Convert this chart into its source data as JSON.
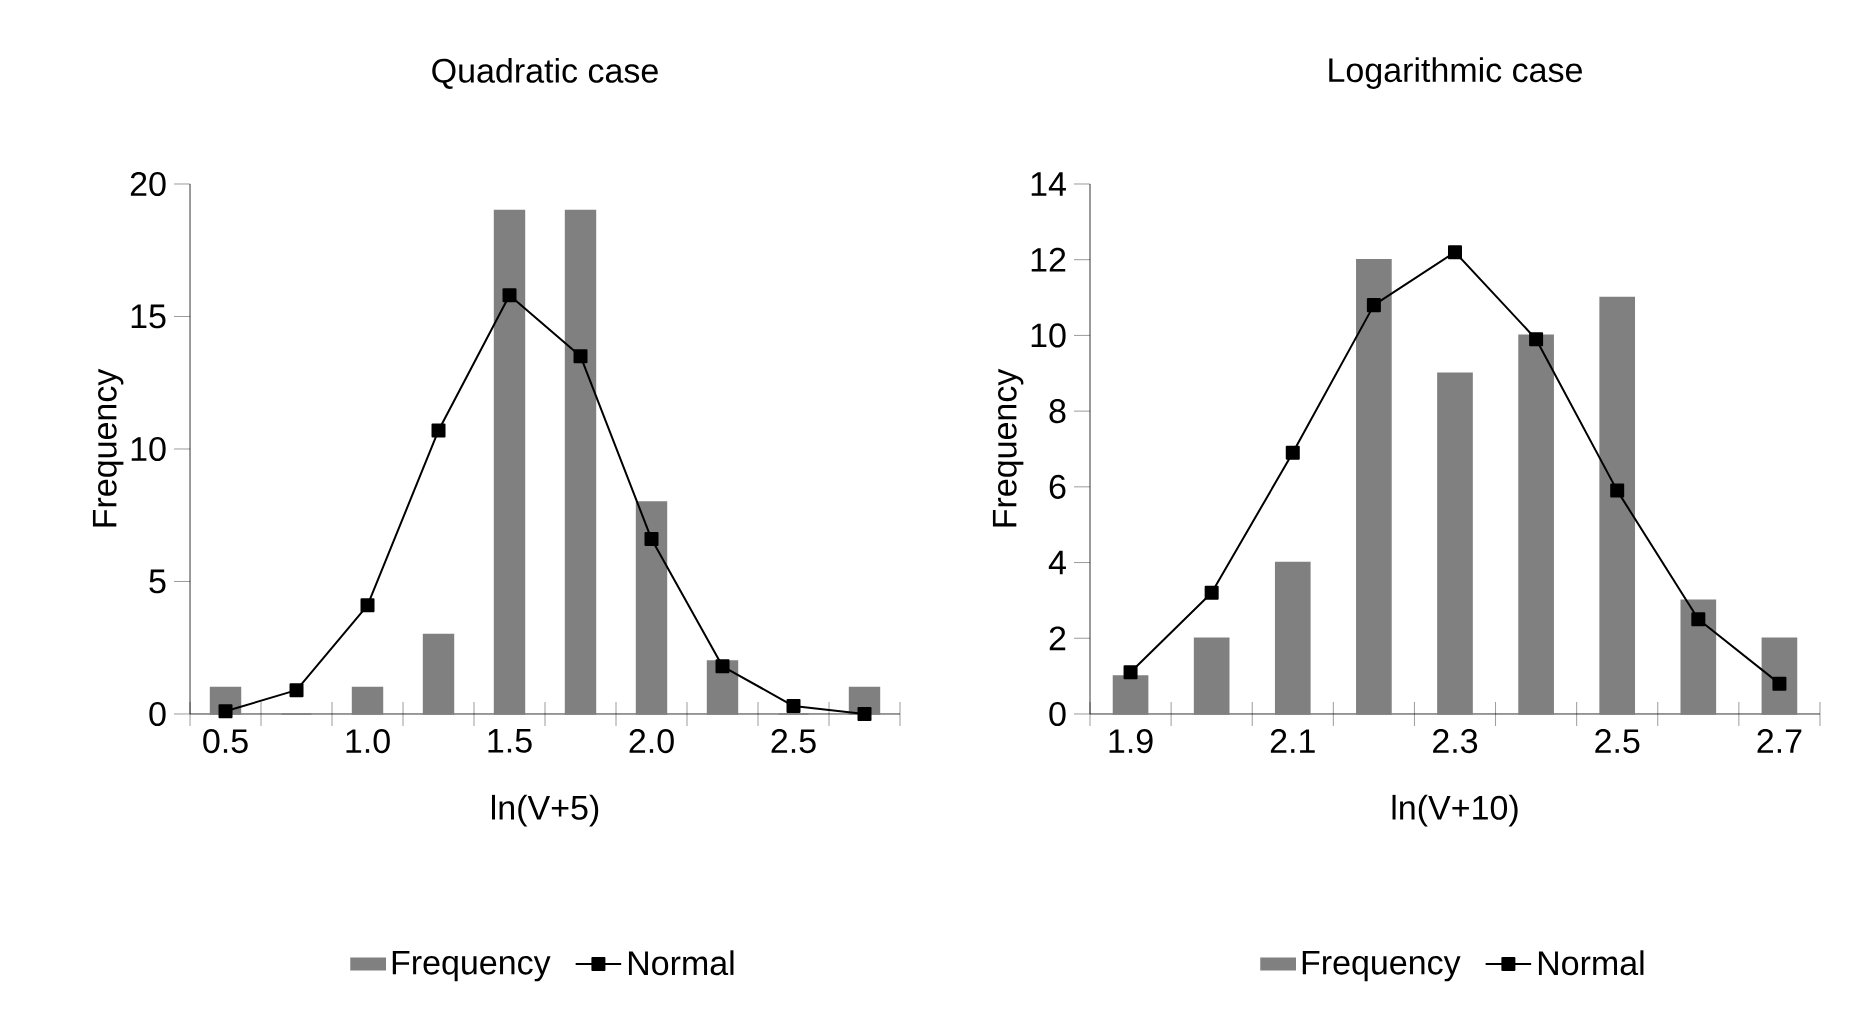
{
  "chart_data": [
    {
      "type": "bar",
      "title": "Quadratic case",
      "xlabel": "ln(V+5)",
      "ylabel": "Frequency",
      "categories": [
        "0.5",
        null,
        "1.0",
        null,
        "1.5",
        null,
        "2.0",
        null,
        "2.5",
        null
      ],
      "ylim": [
        0,
        20
      ],
      "yticks": [
        0,
        5,
        10,
        15,
        20
      ],
      "legend": "bottom",
      "series": [
        {
          "name": "Frequency",
          "color": "#808080",
          "values": [
            1,
            0,
            1,
            3,
            19,
            19,
            8,
            2,
            0,
            1
          ]
        },
        {
          "name": "Normal",
          "type": "line",
          "color": "#000000",
          "marker": "square",
          "values": [
            0.1,
            0.9,
            4.1,
            10.7,
            15.8,
            13.5,
            6.6,
            1.8,
            0.3,
            0.0
          ]
        }
      ]
    },
    {
      "type": "bar",
      "title": "Logarithmic case",
      "xlabel": "ln(V+10)",
      "ylabel": "Frequency",
      "categories": [
        "1.9",
        null,
        "2.1",
        null,
        "2.3",
        null,
        "2.5",
        null,
        "2.7"
      ],
      "ylim": [
        0,
        14
      ],
      "yticks": [
        0,
        2,
        4,
        6,
        8,
        10,
        12,
        14
      ],
      "legend": "bottom",
      "series": [
        {
          "name": "Frequency",
          "color": "#808080",
          "values": [
            1,
            2,
            4,
            12,
            9,
            10,
            11,
            3,
            2
          ]
        },
        {
          "name": "Normal",
          "type": "line",
          "color": "#000000",
          "marker": "square",
          "values": [
            1.1,
            3.2,
            6.9,
            10.8,
            12.2,
            9.9,
            5.9,
            2.5,
            0.8
          ]
        }
      ]
    }
  ]
}
